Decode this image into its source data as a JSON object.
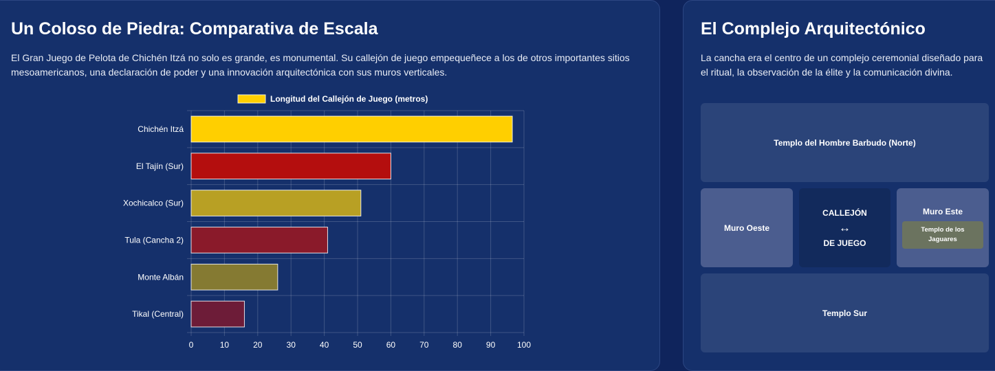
{
  "left": {
    "title": "Un Coloso de Piedra: Comparativa de Escala",
    "description": "El Gran Juego de Pelota de Chichén Itzá no solo es grande, es monumental. Su callejón de juego empequeñece a los de otros importantes sitios mesoamericanos, una declaración de poder y una innovación arquitectónica con sus muros verticales."
  },
  "chart_data": {
    "type": "bar",
    "orientation": "horizontal",
    "categories": [
      "Chichén Itzá",
      "El Tajín (Sur)",
      "Xochicalco (Sur)",
      "Tula (Cancha 2)",
      "Monte Albán",
      "Tikal (Central)"
    ],
    "series": [
      {
        "name": "Longitud del Callejón de Juego (metros)",
        "values": [
          96.5,
          60,
          51,
          41,
          26,
          16
        ],
        "colors": [
          "#ffcf00",
          "#b40e0e",
          "#b8a024",
          "#8a1a2a",
          "#857a32",
          "#6d1c38"
        ]
      }
    ],
    "xlim": [
      0,
      100
    ],
    "xticks": [
      0,
      10,
      20,
      30,
      40,
      50,
      60,
      70,
      80,
      90,
      100
    ],
    "grid": true,
    "legend": "top",
    "legend_color": "#ffcf00"
  },
  "right": {
    "title": "El Complejo Arquitectónico",
    "description": "La cancha era el centro de un complejo ceremonial diseñado para el ritual, la observación de la élite y la comunicación divina.",
    "tiles": {
      "north": "Templo del Hombre Barbudo (Norte)",
      "west": "Muro Oeste",
      "alley_top": "CALLEJÓN",
      "alley_arrow": "↔",
      "alley_bottom": "DE JUEGO",
      "east": "Muro Este",
      "east_sub": "Templo de los Jaguares",
      "south": "Templo Sur"
    }
  }
}
